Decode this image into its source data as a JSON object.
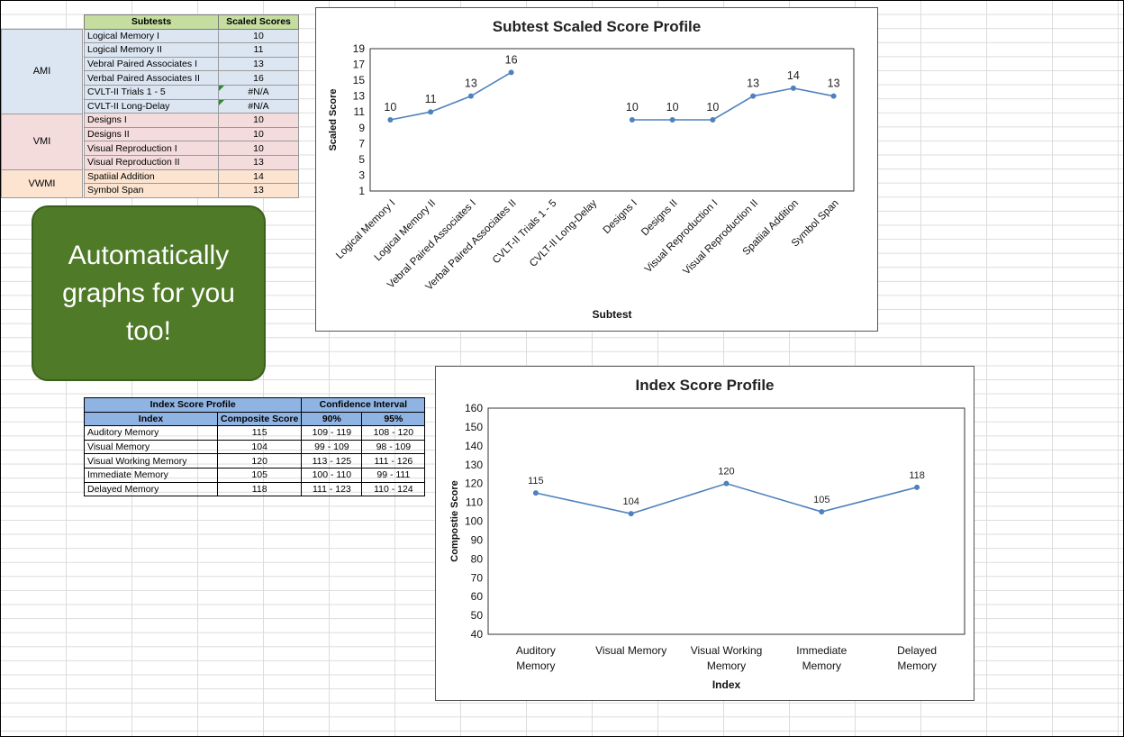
{
  "subtest_table": {
    "headers": [
      "Subtests",
      "Scaled Scores"
    ],
    "groups": [
      {
        "name": "AMI",
        "rows": [
          {
            "subtest": "Logical Memory I",
            "score": "10"
          },
          {
            "subtest": "Logical Memory II",
            "score": "11"
          },
          {
            "subtest": "Vebral Paired Associates I",
            "score": "13"
          },
          {
            "subtest": "Verbal Paired Associates II",
            "score": "16"
          },
          {
            "subtest": "CVLT-II Trials 1 - 5",
            "score": "#N/A"
          },
          {
            "subtest": "CVLT-II Long-Delay",
            "score": "#N/A"
          }
        ]
      },
      {
        "name": "VMI",
        "rows": [
          {
            "subtest": "Designs I",
            "score": "10"
          },
          {
            "subtest": "Designs II",
            "score": "10"
          },
          {
            "subtest": "Visual Reproduction I",
            "score": "10"
          },
          {
            "subtest": "Visual Reproduction II",
            "score": "13"
          }
        ]
      },
      {
        "name": "VWMI",
        "rows": [
          {
            "subtest": "Spatiial Addition",
            "score": "14"
          },
          {
            "subtest": "Symbol Span",
            "score": "13"
          }
        ]
      }
    ]
  },
  "callout": {
    "text": "Automatically graphs for you too!"
  },
  "index_table": {
    "title": "Index Score Profile",
    "ci_title": "Confidence Interval",
    "headers": [
      "Index",
      "Composite Score",
      "90%",
      "95%"
    ],
    "rows": [
      {
        "index": "Auditory Memory",
        "score": "115",
        "ci90": "109 - 119",
        "ci95": "108 - 120"
      },
      {
        "index": "Visual Memory",
        "score": "104",
        "ci90": "99 - 109",
        "ci95": "98 - 109"
      },
      {
        "index": "Visual Working Memory",
        "score": "120",
        "ci90": "113 - 125",
        "ci95": "111 - 126"
      },
      {
        "index": "Immediate Memory",
        "score": "105",
        "ci90": "100 - 110",
        "ci95": "99 - 111"
      },
      {
        "index": "Delayed Memory",
        "score": "118",
        "ci90": "111 - 123",
        "ci95": "110 - 124"
      }
    ]
  },
  "colors": {
    "line": "#4f81bd",
    "callout": "#4f7a28",
    "header_green": "#c5dea0",
    "header_blue": "#8fb4e3"
  },
  "chart_data": [
    {
      "type": "line",
      "title": "Subtest Scaled Score Profile",
      "xlabel": "Subtest",
      "ylabel": "Scaled Score",
      "ylim": [
        1,
        19
      ],
      "yticks": [
        1,
        3,
        5,
        7,
        9,
        11,
        13,
        15,
        17,
        19
      ],
      "categories": [
        "Logical Memory I",
        "Logical Memory II",
        "Vebral Paired Associates I",
        "Verbal Paired Associates II",
        "CVLT-II Trials 1 - 5",
        "CVLT-II Long-Delay",
        "Designs I",
        "Designs II",
        "Visual Reproduction I",
        "Visual Reproduction II",
        "Spatiial Addition",
        "Symbol Span"
      ],
      "values": [
        10,
        11,
        13,
        16,
        null,
        null,
        10,
        10,
        10,
        13,
        14,
        13
      ],
      "data_labels": true,
      "grid": false
    },
    {
      "type": "line",
      "title": "Index Score Profile",
      "xlabel": "Index",
      "ylabel": "Compostie Score",
      "ylim": [
        40,
        160
      ],
      "yticks": [
        40,
        50,
        60,
        70,
        80,
        90,
        100,
        110,
        120,
        130,
        140,
        150,
        160
      ],
      "categories": [
        "Auditory Memory",
        "Visual Memory",
        "Visual Working Memory",
        "Immediate Memory",
        "Delayed Memory"
      ],
      "values": [
        115,
        104,
        120,
        105,
        118
      ],
      "data_labels": true,
      "grid": false
    }
  ]
}
